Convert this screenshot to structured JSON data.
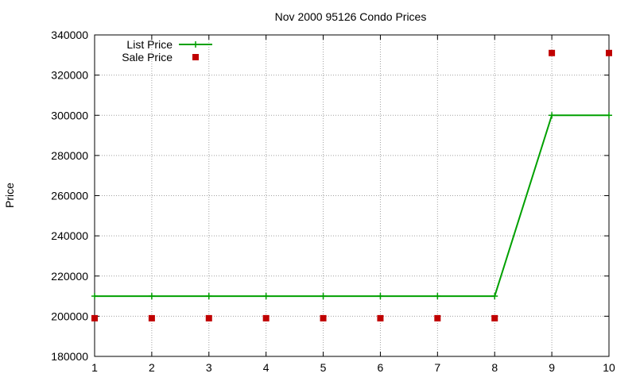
{
  "chart_data": {
    "type": "line",
    "title": "Nov 2000 95126 Condo Prices",
    "xlabel": "",
    "ylabel": "Price",
    "x": [
      1,
      2,
      3,
      4,
      5,
      6,
      7,
      8,
      9,
      10
    ],
    "xlim": [
      1,
      10
    ],
    "ylim": [
      180000,
      340000
    ],
    "x_ticks": [
      "1",
      "2",
      "3",
      "4",
      "5",
      "6",
      "7",
      "8",
      "9",
      "10"
    ],
    "y_ticks": [
      "180000",
      "200000",
      "220000",
      "240000",
      "260000",
      "280000",
      "300000",
      "320000",
      "340000"
    ],
    "grid": true,
    "legend_position": "top-left",
    "series": [
      {
        "name": "List Price",
        "style": "linespoints",
        "marker": "plus",
        "color": "#00a000",
        "values": [
          210000,
          210000,
          210000,
          210000,
          210000,
          210000,
          210000,
          210000,
          300000,
          300000
        ]
      },
      {
        "name": "Sale Price",
        "style": "points",
        "marker": "square",
        "color": "#c00000",
        "values": [
          199000,
          199000,
          199000,
          199000,
          199000,
          199000,
          199000,
          199000,
          331000,
          331000
        ]
      }
    ]
  }
}
